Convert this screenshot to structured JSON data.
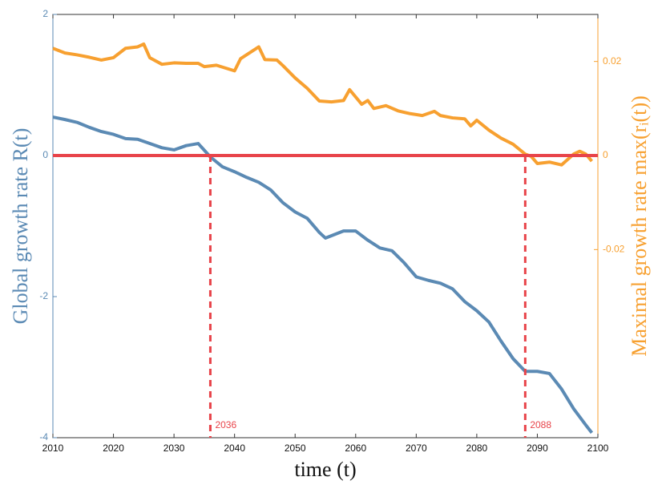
{
  "chart_data": {
    "type": "line",
    "xlabel": "time (t)",
    "ylabel": "Global growth rate R(t)",
    "y2label": "Maximal growth rate max(rᵢ(t))",
    "xlim": [
      2010,
      2100
    ],
    "xticks": [
      2010,
      2020,
      2030,
      2040,
      2050,
      2060,
      2070,
      2080,
      2090,
      2100
    ],
    "ylim": [
      -4,
      2
    ],
    "yticks": [
      -4,
      -2,
      0,
      2
    ],
    "y2lim": [
      -0.06,
      0.03
    ],
    "y2ticks": [
      -0.02,
      0,
      0.02
    ],
    "hline": 0,
    "hline_color": "#e8444a",
    "vlines": [
      2036,
      2088
    ],
    "series": [
      {
        "name": "Global growth rate",
        "color": "#5b8ab4",
        "x": [
          2010,
          2012,
          2014,
          2016,
          2018,
          2020,
          2022,
          2024,
          2026,
          2028,
          2030,
          2032,
          2034,
          2036,
          2038,
          2040,
          2042,
          2044,
          2046,
          2048,
          2050,
          2052,
          2054,
          2055,
          2058,
          2060,
          2062,
          2064,
          2066,
          2068,
          2070,
          2072,
          2074,
          2076,
          2078,
          2080,
          2082,
          2084,
          2086,
          2088,
          2090,
          2092,
          2094,
          2096,
          2098,
          2099
        ],
        "values": [
          0.545,
          0.51,
          0.47,
          0.4,
          0.34,
          0.3,
          0.24,
          0.23,
          0.17,
          0.11,
          0.08,
          0.14,
          0.17,
          -0.02,
          -0.16,
          -0.23,
          -0.31,
          -0.38,
          -0.49,
          -0.67,
          -0.8,
          -0.89,
          -1.09,
          -1.17,
          -1.07,
          -1.07,
          -1.2,
          -1.31,
          -1.35,
          -1.52,
          -1.72,
          -1.77,
          -1.81,
          -1.89,
          -2.07,
          -2.2,
          -2.36,
          -2.63,
          -2.88,
          -3.06,
          -3.06,
          -3.09,
          -3.31,
          -3.59,
          -3.82,
          -3.93
        ]
      },
      {
        "name": "Maximal growth rate",
        "color": "#f7a030",
        "axis": "y2",
        "x": [
          2010,
          2012,
          2014,
          2016,
          2018,
          2020,
          2022,
          2024,
          2025,
          2026,
          2028,
          2030,
          2032,
          2034,
          2035,
          2037,
          2040,
          2041,
          2044,
          2045,
          2047,
          2048,
          2050,
          2052,
          2054,
          2056,
          2058,
          2059,
          2061,
          2062,
          2063,
          2065,
          2067,
          2069,
          2071,
          2073,
          2074,
          2076,
          2078,
          2079,
          2080,
          2082,
          2084,
          2086,
          2088,
          2089,
          2090,
          2092,
          2094,
          2096,
          2097,
          2098,
          2099
        ],
        "values": [
          0.0228,
          0.0218,
          0.0214,
          0.0209,
          0.0203,
          0.0208,
          0.0228,
          0.0231,
          0.0237,
          0.0208,
          0.0194,
          0.0197,
          0.0196,
          0.0196,
          0.0189,
          0.0192,
          0.018,
          0.0206,
          0.0231,
          0.0204,
          0.0203,
          0.0191,
          0.0165,
          0.0143,
          0.0116,
          0.0114,
          0.0117,
          0.014,
          0.0109,
          0.0117,
          0.01,
          0.0106,
          0.0095,
          0.0089,
          0.0085,
          0.0094,
          0.0085,
          0.008,
          0.0078,
          0.0063,
          0.0075,
          0.0054,
          0.0037,
          0.0024,
          0.0003,
          -0.0002,
          -0.0017,
          -0.0014,
          -0.002,
          0.0003,
          0.0009,
          0.0003,
          -0.0012
        ]
      }
    ]
  }
}
